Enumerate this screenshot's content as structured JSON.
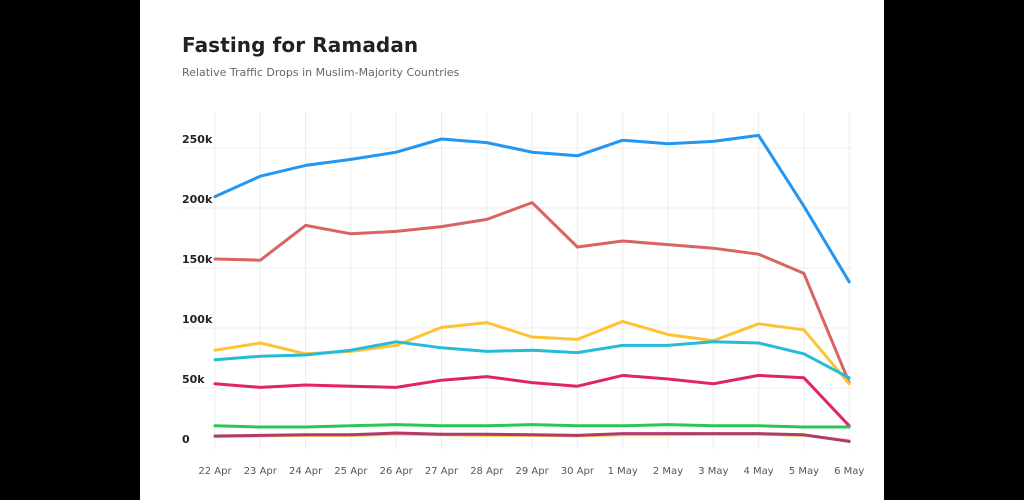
{
  "chart_data": {
    "type": "line",
    "title": "Fasting for Ramadan",
    "subtitle": "Relative Traffic Drops in Muslim-Majority Countries",
    "xlabel": "",
    "ylabel": "",
    "categories": [
      "22 Apr",
      "23 Apr",
      "24 Apr",
      "25 Apr",
      "26 Apr",
      "27 Apr",
      "28 Apr",
      "29 Apr",
      "30 Apr",
      "1 May",
      "2 May",
      "3 May",
      "4 May",
      "5 May",
      "6 May"
    ],
    "ylim": [
      0,
      260000
    ],
    "yticks": [
      0,
      50000,
      100000,
      150000,
      200000,
      250000
    ],
    "ytick_labels": [
      "0",
      "50k",
      "100k",
      "150k",
      "200k",
      "250k"
    ],
    "grid": true,
    "legend": "none",
    "series": [
      {
        "color": "#2196F3",
        "values": [
          202000,
          219000,
          228000,
          233000,
          239000,
          250000,
          247000,
          239000,
          236000,
          249000,
          246000,
          248000,
          253000,
          194000,
          131000
        ]
      },
      {
        "color": "#D86464",
        "values": [
          150000,
          149000,
          178000,
          171000,
          173000,
          177000,
          183000,
          197000,
          160000,
          165000,
          162000,
          159000,
          154000,
          138000,
          47000
        ]
      },
      {
        "color": "#FFC233",
        "values": [
          74000,
          80000,
          71000,
          73000,
          78000,
          93000,
          97000,
          85000,
          83000,
          98000,
          87000,
          82000,
          96000,
          91000,
          46000
        ]
      },
      {
        "color": "#26BCD7",
        "values": [
          66000,
          69000,
          70000,
          74000,
          81000,
          76000,
          73000,
          74000,
          72000,
          78000,
          78000,
          81000,
          80000,
          71000,
          51000
        ]
      },
      {
        "color": "#E0246A",
        "values": [
          46000,
          43000,
          45000,
          44000,
          43000,
          49000,
          52000,
          47000,
          44000,
          53000,
          50000,
          46000,
          53000,
          51000,
          11000
        ]
      },
      {
        "color": "#2BC657",
        "values": [
          11000,
          10000,
          10000,
          11000,
          12000,
          11000,
          11000,
          12000,
          11000,
          11000,
          12000,
          11000,
          11000,
          10000,
          10000
        ]
      },
      {
        "color": "#FFD54F",
        "values": [
          2000,
          2500,
          3000,
          3000,
          4000,
          3500,
          3000,
          3000,
          2500,
          3500,
          3500,
          4000,
          4000,
          3000,
          -1500
        ]
      },
      {
        "color": "#B03A6A",
        "values": [
          2500,
          3000,
          3500,
          3500,
          5000,
          4000,
          4000,
          3500,
          3000,
          4500,
          4500,
          4500,
          4500,
          3500,
          -2000
        ]
      }
    ]
  }
}
